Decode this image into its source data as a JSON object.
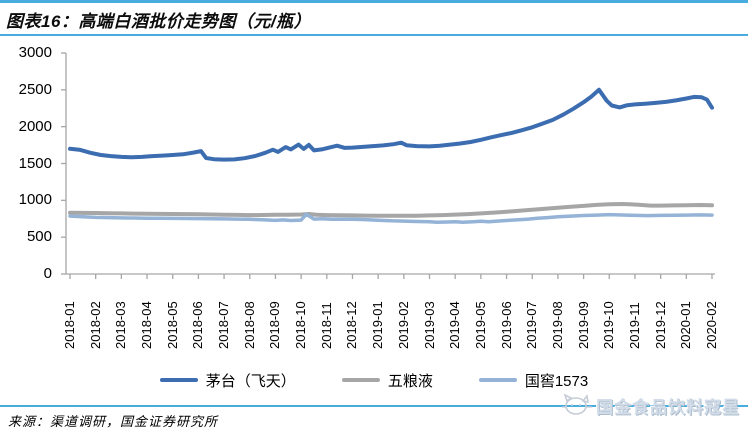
{
  "figure": {
    "title": "图表16：高端白酒批价走势图（元/瓶）",
    "source": "来源：渠道调研，国金证券研究所",
    "watermark": "国金食品饮料寇星"
  },
  "colors": {
    "accent_rule": "#49acde",
    "axis": "#a6a6a6",
    "maotai_line": "#3c6db0",
    "wuliangye_line": "#a6a6a6",
    "guojiao_line": "#95b3d7",
    "watermark_text": "#d3dde9"
  },
  "chart_data": {
    "type": "line",
    "title": "高端白酒批价走势图（元/瓶）",
    "unit": "元/瓶",
    "ylim": [
      0,
      3000
    ],
    "y_ticks": [
      0,
      500,
      1000,
      1500,
      2000,
      2500,
      3000
    ],
    "grid": false,
    "legend_position": "bottom",
    "x_categories": [
      "2018-01",
      "2018-02",
      "2018-03",
      "2018-04",
      "2018-05",
      "2018-06",
      "2018-07",
      "2018-08",
      "2018-09",
      "2018-10",
      "2018-11",
      "2018-12",
      "2019-01",
      "2019-02",
      "2019-03",
      "2019-04",
      "2019-05",
      "2019-06",
      "2019-07",
      "2019-08",
      "2019-09",
      "2019-10",
      "2019-11",
      "2019-12",
      "2020-01",
      "2020-02"
    ],
    "series": [
      {
        "name": "茅台（飞天）",
        "color": "#3c6db0",
        "width": 4,
        "points": [
          [
            0,
            1700
          ],
          [
            0.4,
            1685
          ],
          [
            0.8,
            1645
          ],
          [
            1.2,
            1615
          ],
          [
            1.6,
            1600
          ],
          [
            2,
            1590
          ],
          [
            2.4,
            1585
          ],
          [
            2.8,
            1590
          ],
          [
            3.2,
            1600
          ],
          [
            3.6,
            1607
          ],
          [
            4,
            1615
          ],
          [
            4.4,
            1625
          ],
          [
            4.8,
            1648
          ],
          [
            5.1,
            1668
          ],
          [
            5.3,
            1575
          ],
          [
            5.6,
            1558
          ],
          [
            6,
            1553
          ],
          [
            6.4,
            1556
          ],
          [
            6.8,
            1572
          ],
          [
            7.2,
            1600
          ],
          [
            7.6,
            1645
          ],
          [
            7.9,
            1688
          ],
          [
            8.1,
            1658
          ],
          [
            8.4,
            1722
          ],
          [
            8.6,
            1692
          ],
          [
            8.9,
            1757
          ],
          [
            9.1,
            1698
          ],
          [
            9.3,
            1752
          ],
          [
            9.5,
            1678
          ],
          [
            9.8,
            1692
          ],
          [
            10.1,
            1716
          ],
          [
            10.4,
            1742
          ],
          [
            10.7,
            1712
          ],
          [
            11,
            1716
          ],
          [
            11.4,
            1726
          ],
          [
            11.8,
            1736
          ],
          [
            12.2,
            1746
          ],
          [
            12.6,
            1762
          ],
          [
            12.9,
            1782
          ],
          [
            13.1,
            1748
          ],
          [
            13.5,
            1736
          ],
          [
            14,
            1732
          ],
          [
            14.4,
            1742
          ],
          [
            14.8,
            1756
          ],
          [
            15.2,
            1772
          ],
          [
            15.6,
            1792
          ],
          [
            16,
            1822
          ],
          [
            16.4,
            1856
          ],
          [
            16.8,
            1886
          ],
          [
            17.2,
            1916
          ],
          [
            17.6,
            1952
          ],
          [
            18,
            1992
          ],
          [
            18.4,
            2042
          ],
          [
            18.8,
            2092
          ],
          [
            19.2,
            2162
          ],
          [
            19.6,
            2242
          ],
          [
            20,
            2332
          ],
          [
            20.3,
            2408
          ],
          [
            20.6,
            2500
          ],
          [
            20.9,
            2352
          ],
          [
            21.1,
            2288
          ],
          [
            21.4,
            2262
          ],
          [
            21.7,
            2292
          ],
          [
            22,
            2302
          ],
          [
            22.4,
            2312
          ],
          [
            22.8,
            2322
          ],
          [
            23.2,
            2336
          ],
          [
            23.6,
            2356
          ],
          [
            24,
            2382
          ],
          [
            24.3,
            2404
          ],
          [
            24.6,
            2398
          ],
          [
            24.8,
            2368
          ],
          [
            25,
            2258
          ]
        ]
      },
      {
        "name": "五粮液",
        "color": "#a6a6a6",
        "width": 4,
        "points": [
          [
            0,
            832
          ],
          [
            0.5,
            830
          ],
          [
            1,
            828
          ],
          [
            1.5,
            825
          ],
          [
            2,
            822
          ],
          [
            2.5,
            820
          ],
          [
            3,
            818
          ],
          [
            3.5,
            816
          ],
          [
            4,
            815
          ],
          [
            4.5,
            813
          ],
          [
            5,
            812
          ],
          [
            5.5,
            808
          ],
          [
            6,
            805
          ],
          [
            6.5,
            802
          ],
          [
            7,
            800
          ],
          [
            7.5,
            801
          ],
          [
            8,
            803
          ],
          [
            8.5,
            805
          ],
          [
            9,
            808
          ],
          [
            9.3,
            814
          ],
          [
            9.6,
            804
          ],
          [
            10,
            800
          ],
          [
            10.5,
            798
          ],
          [
            11,
            795
          ],
          [
            11.5,
            793
          ],
          [
            12,
            792
          ],
          [
            12.5,
            791
          ],
          [
            13,
            790
          ],
          [
            13.5,
            792
          ],
          [
            14,
            796
          ],
          [
            14.5,
            800
          ],
          [
            15,
            806
          ],
          [
            15.5,
            813
          ],
          [
            16,
            822
          ],
          [
            16.5,
            833
          ],
          [
            17,
            846
          ],
          [
            17.5,
            858
          ],
          [
            18,
            872
          ],
          [
            18.5,
            886
          ],
          [
            19,
            900
          ],
          [
            19.5,
            913
          ],
          [
            20,
            925
          ],
          [
            20.5,
            938
          ],
          [
            21,
            946
          ],
          [
            21.5,
            950
          ],
          [
            21.8,
            948
          ],
          [
            22.2,
            938
          ],
          [
            22.6,
            928
          ],
          [
            23,
            928
          ],
          [
            23.5,
            931
          ],
          [
            24,
            934
          ],
          [
            24.5,
            936
          ],
          [
            25,
            932
          ]
        ]
      },
      {
        "name": "国窖1573",
        "color": "#95b3d7",
        "width": 3.5,
        "points": [
          [
            0,
            786
          ],
          [
            0.5,
            776
          ],
          [
            1,
            768
          ],
          [
            1.5,
            765
          ],
          [
            2,
            762
          ],
          [
            2.5,
            760
          ],
          [
            3,
            758
          ],
          [
            3.5,
            756
          ],
          [
            4,
            755
          ],
          [
            4.5,
            753
          ],
          [
            5,
            752
          ],
          [
            5.5,
            750
          ],
          [
            6,
            748
          ],
          [
            6.5,
            745
          ],
          [
            7,
            742
          ],
          [
            7.5,
            736
          ],
          [
            8,
            728
          ],
          [
            8.3,
            735
          ],
          [
            8.6,
            726
          ],
          [
            9,
            732
          ],
          [
            9.2,
            810
          ],
          [
            9.5,
            745
          ],
          [
            9.8,
            750
          ],
          [
            10.2,
            742
          ],
          [
            10.6,
            744
          ],
          [
            11,
            742
          ],
          [
            11.5,
            738
          ],
          [
            12,
            730
          ],
          [
            12.5,
            722
          ],
          [
            13,
            718
          ],
          [
            13.5,
            712
          ],
          [
            14,
            708
          ],
          [
            14.3,
            703
          ],
          [
            14.7,
            706
          ],
          [
            15,
            708
          ],
          [
            15.3,
            703
          ],
          [
            15.7,
            709
          ],
          [
            16,
            715
          ],
          [
            16.3,
            710
          ],
          [
            16.7,
            720
          ],
          [
            17,
            726
          ],
          [
            17.4,
            734
          ],
          [
            17.8,
            744
          ],
          [
            18.2,
            756
          ],
          [
            18.6,
            766
          ],
          [
            19,
            776
          ],
          [
            19.5,
            786
          ],
          [
            20,
            794
          ],
          [
            20.5,
            800
          ],
          [
            21,
            806
          ],
          [
            21.5,
            801
          ],
          [
            22,
            796
          ],
          [
            22.5,
            793
          ],
          [
            23,
            796
          ],
          [
            23.5,
            798
          ],
          [
            24,
            800
          ],
          [
            24.5,
            802
          ],
          [
            25,
            799
          ]
        ]
      }
    ]
  }
}
